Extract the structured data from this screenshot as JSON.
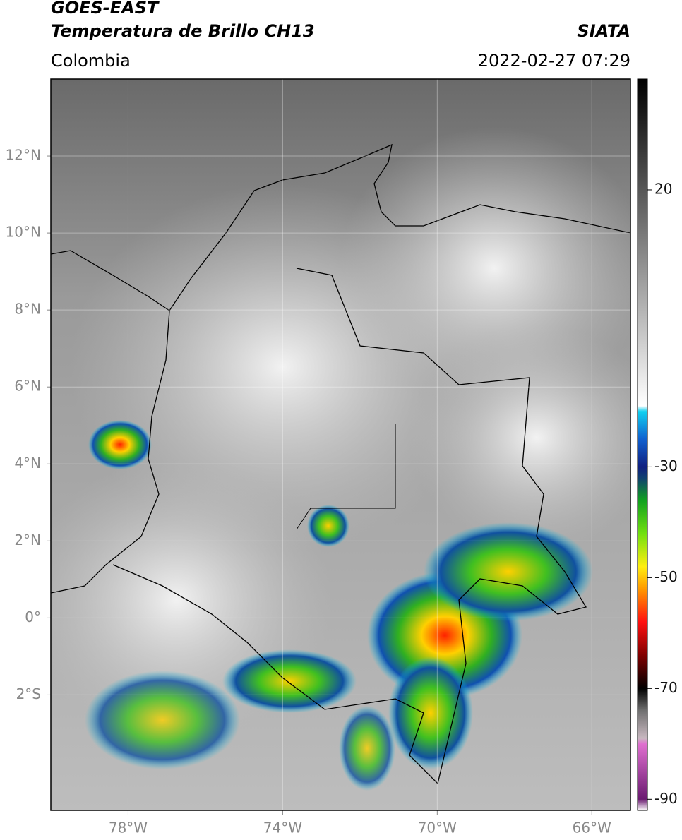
{
  "header": {
    "satellite": "GOES-EAST",
    "product": "Temperatura de Brillo CH13",
    "region": "Colombia",
    "source": "SIATA",
    "datetime": "2022-02-27 07:29"
  },
  "map": {
    "xlim": [
      -80,
      -65
    ],
    "ylim": [
      -5,
      14
    ],
    "xticks": [
      {
        "value": -78,
        "label": "78°W"
      },
      {
        "value": -74,
        "label": "74°W"
      },
      {
        "value": -70,
        "label": "70°W"
      },
      {
        "value": -66,
        "label": "66°W"
      }
    ],
    "yticks": [
      {
        "value": 12,
        "label": "12°N"
      },
      {
        "value": 10,
        "label": "10°N"
      },
      {
        "value": 8,
        "label": "8°N"
      },
      {
        "value": 6,
        "label": "6°N"
      },
      {
        "value": 4,
        "label": "4°N"
      },
      {
        "value": 2,
        "label": "2°N"
      },
      {
        "value": 0,
        "label": "0°"
      },
      {
        "value": -2,
        "label": "2°S"
      }
    ],
    "grid": true
  },
  "colorbar": {
    "lim": [
      -92,
      40
    ],
    "ticks": [
      20,
      -30,
      -50,
      -70,
      -90
    ],
    "stops": [
      {
        "value": -92,
        "color": "#ffffff"
      },
      {
        "value": -90,
        "color": "#6a1a70"
      },
      {
        "value": -80,
        "color": "#e070d0"
      },
      {
        "value": -79,
        "color": "#c8b8c0"
      },
      {
        "value": -74,
        "color": "#707070"
      },
      {
        "value": -70,
        "color": "#000000"
      },
      {
        "value": -64,
        "color": "#800000"
      },
      {
        "value": -58,
        "color": "#ff1010"
      },
      {
        "value": -52,
        "color": "#ff9a00"
      },
      {
        "value": -48,
        "color": "#ffee10"
      },
      {
        "value": -42,
        "color": "#70e010"
      },
      {
        "value": -36,
        "color": "#10a020"
      },
      {
        "value": -32,
        "color": "#104070"
      },
      {
        "value": -30,
        "color": "#102080"
      },
      {
        "value": -25,
        "color": "#1060d0"
      },
      {
        "value": -20,
        "color": "#10d0f0"
      },
      {
        "value": -19,
        "color": "#ffffff"
      },
      {
        "value": 40,
        "color": "#000000"
      }
    ]
  }
}
